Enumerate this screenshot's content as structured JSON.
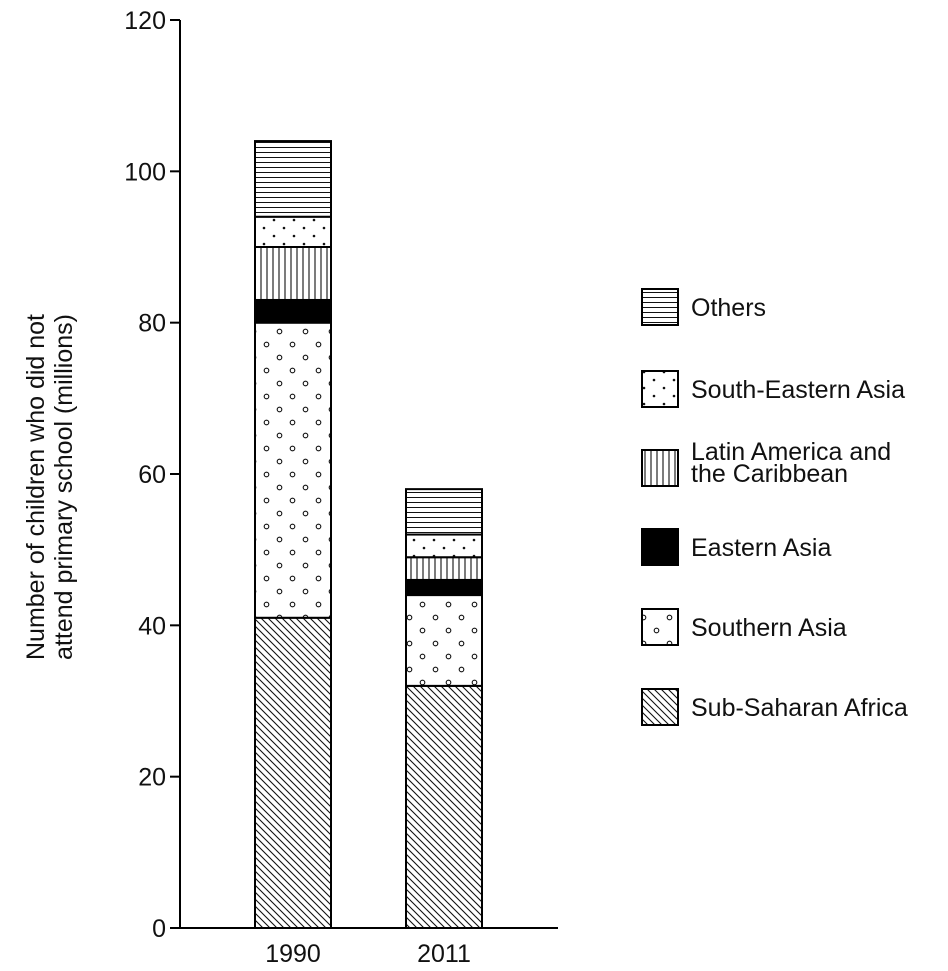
{
  "chart_data": {
    "type": "bar",
    "stacked": true,
    "categories": [
      "1990",
      "2011"
    ],
    "ylabel": [
      "Number of children who did not",
      "attend primary school (millions)"
    ],
    "xlabel": "",
    "ylim": [
      0,
      120
    ],
    "yticks": [
      0,
      20,
      40,
      60,
      80,
      100,
      120
    ],
    "grid": false,
    "legend_placement": "right",
    "series": [
      {
        "name": "Sub-Saharan Africa",
        "pattern": "diagonal-hatch",
        "values": [
          41,
          32
        ]
      },
      {
        "name": "Southern Asia",
        "pattern": "circles",
        "values": [
          39,
          12
        ]
      },
      {
        "name": "Eastern Asia",
        "pattern": "solid-black",
        "values": [
          3,
          2
        ]
      },
      {
        "name": "Latin America and the Caribbean",
        "legend_lines": [
          "Latin America and",
          "the Caribbean"
        ],
        "pattern": "vertical-lines",
        "values": [
          7,
          3
        ]
      },
      {
        "name": "South-Eastern Asia",
        "pattern": "dots",
        "values": [
          4,
          3
        ]
      },
      {
        "name": "Others",
        "pattern": "horizontal-lines",
        "values": [
          10,
          6
        ]
      }
    ],
    "legend_order": [
      "Others",
      "South-Eastern Asia",
      "Latin America and the Caribbean",
      "Eastern Asia",
      "Southern Asia",
      "Sub-Saharan Africa"
    ]
  }
}
